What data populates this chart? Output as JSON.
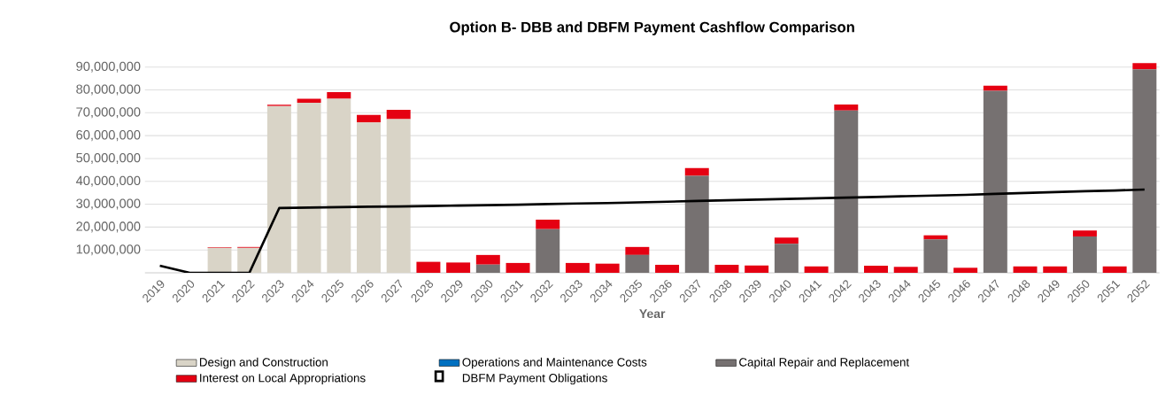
{
  "chart_data": {
    "type": "bar",
    "title": "Option B- DBB and DBFM Payment Cashflow Comparison",
    "xlabel": "Year",
    "categories": [
      "2019",
      "2020",
      "2021",
      "2022",
      "2023",
      "2024",
      "2025",
      "2026",
      "2027",
      "2028",
      "2029",
      "2030",
      "2031",
      "2032",
      "2033",
      "2034",
      "2035",
      "2036",
      "2037",
      "2038",
      "2039",
      "2040",
      "2041",
      "2042",
      "2043",
      "2044",
      "2045",
      "2046",
      "2047",
      "2048",
      "2049",
      "2050",
      "2051",
      "2052"
    ],
    "stacked": true,
    "grid": "y",
    "legend": "bottom",
    "ylim": [
      0,
      92000000
    ],
    "yticks": [
      {
        "value": 10000000,
        "label": "10,000,000"
      },
      {
        "value": 20000000,
        "label": "20,000,000"
      },
      {
        "value": 30000000,
        "label": "30,000,000"
      },
      {
        "value": 40000000,
        "label": "40,000,000"
      },
      {
        "value": 50000000,
        "label": "50,000,000"
      },
      {
        "value": 60000000,
        "label": "60,000,000"
      },
      {
        "value": 70000000,
        "label": "70,000,000"
      },
      {
        "value": 80000000,
        "label": "80,000,000"
      },
      {
        "value": 90000000,
        "label": "90,000,000"
      }
    ],
    "series": [
      {
        "name": "Design and Construction",
        "color": "#d9d4c7",
        "values": [
          0,
          0,
          10900000,
          10900000,
          72900000,
          74400000,
          76100000,
          65800000,
          67200000,
          0,
          0,
          0,
          0,
          0,
          0,
          0,
          0,
          0,
          0,
          0,
          0,
          0,
          0,
          0,
          0,
          0,
          0,
          0,
          0,
          0,
          0,
          0,
          0,
          0
        ]
      },
      {
        "name": "Operations and Maintenance Costs",
        "color": "#0070c0",
        "values": [
          0,
          0,
          0,
          0,
          0,
          0,
          0,
          0,
          0,
          0,
          0,
          0,
          0,
          0,
          0,
          0,
          0,
          0,
          0,
          0,
          0,
          0,
          0,
          0,
          0,
          0,
          0,
          0,
          0,
          0,
          0,
          0,
          0,
          0
        ]
      },
      {
        "name": "Capital Repair and Replacement",
        "color": "#767171",
        "values": [
          0,
          0,
          0,
          0,
          0,
          0,
          0,
          0,
          0,
          0,
          0,
          3600000,
          0,
          19100000,
          0,
          0,
          7800000,
          0,
          42400000,
          0,
          0,
          12700000,
          0,
          71000000,
          0,
          0,
          14600000,
          0,
          79600000,
          0,
          0,
          15900000,
          0,
          89000000
        ]
      },
      {
        "name": "Interest on Local Appropriations",
        "color": "#e50012",
        "values": [
          0,
          0,
          300000,
          400000,
          600000,
          1700000,
          2900000,
          3300000,
          4100000,
          4800000,
          4500000,
          4200000,
          4300000,
          4100000,
          4300000,
          4000000,
          3500000,
          3500000,
          3400000,
          3500000,
          3200000,
          2700000,
          2800000,
          2600000,
          3100000,
          2600000,
          1800000,
          2200000,
          2200000,
          2800000,
          2800000,
          2600000,
          2800000,
          2700000
        ]
      },
      {
        "name": "DBFM Payment Obligations",
        "color": "#000000",
        "type": "line",
        "values": [
          3100000,
          0,
          0,
          0,
          28300000,
          28500000,
          28700000,
          28900000,
          29000000,
          29200000,
          29400000,
          29600000,
          29800000,
          30100000,
          30300000,
          30500000,
          30800000,
          31100000,
          31400000,
          31700000,
          32000000,
          32300000,
          32600000,
          32900000,
          33200000,
          33500000,
          33800000,
          34100000,
          34500000,
          34900000,
          35300000,
          35700000,
          36000000,
          36400000
        ]
      }
    ]
  }
}
